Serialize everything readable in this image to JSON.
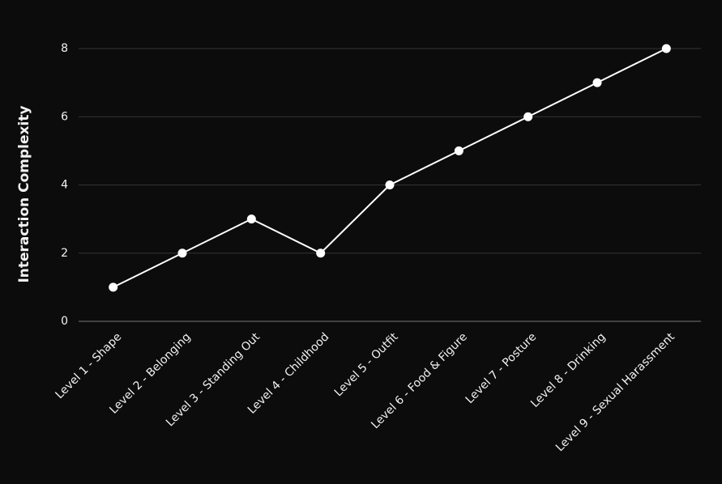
{
  "chart_data": {
    "type": "line",
    "y_label": "Interaction Complexity",
    "categories": [
      "Level 1 - Shape",
      "Level 2 - Belonging",
      "Level 3 - Standing Out",
      "Level 4 - Childhood",
      "Level 5 - Outfit",
      "Level 6 - Food & Figure",
      "Level 7 - Posture",
      "Level 8 - Drinking",
      "Level 9 - Sexual Harassment"
    ],
    "values": [
      1,
      2,
      3,
      2,
      4,
      5,
      6,
      7,
      8
    ],
    "color": "#ffffff",
    "ylim": [
      0,
      8
    ],
    "yticks": [
      0,
      2,
      4,
      6,
      8
    ],
    "grid": true
  }
}
